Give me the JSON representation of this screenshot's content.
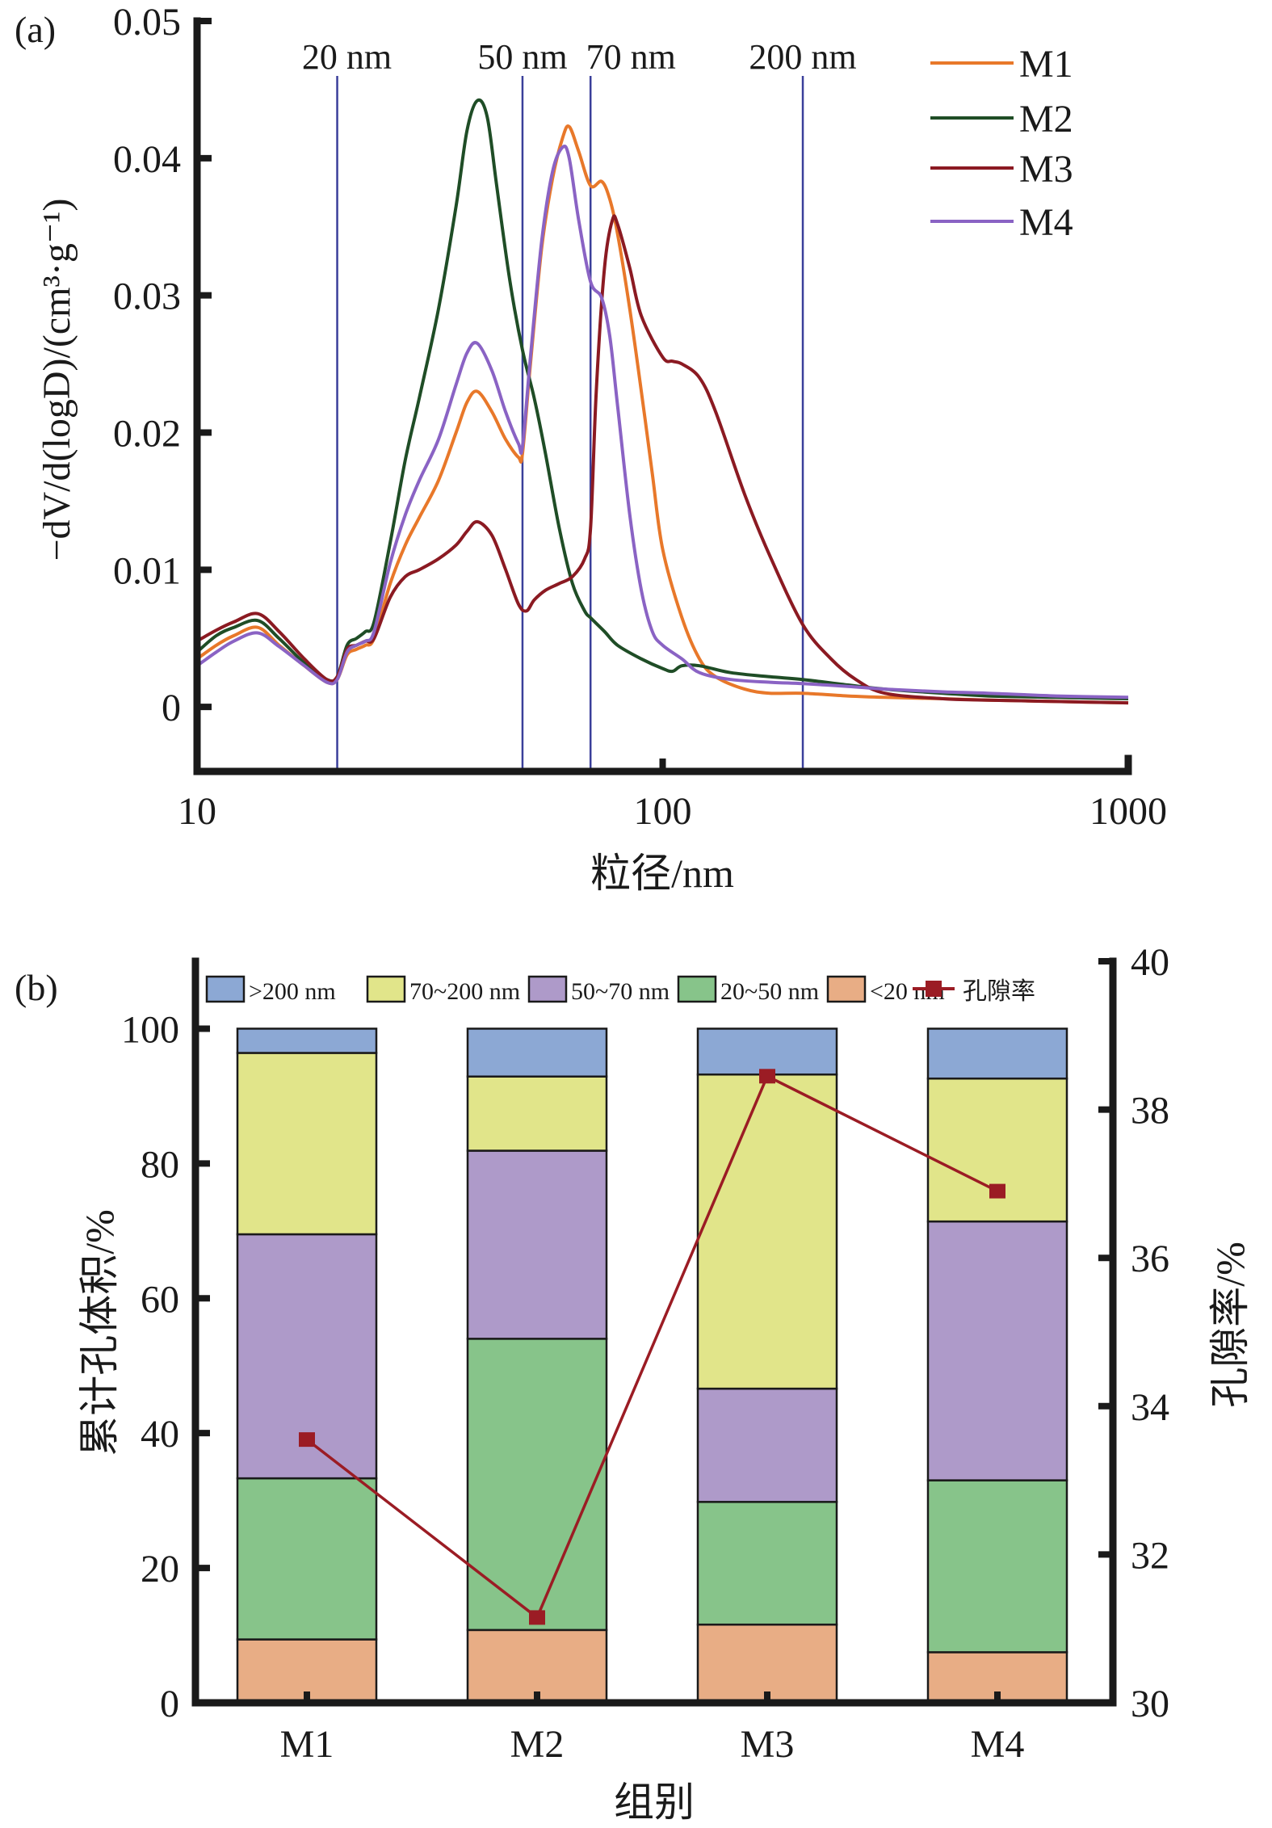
{
  "chart_data": [
    {
      "panel_label": "(a)",
      "type": "line",
      "title": "",
      "xlabel": "粒径/nm",
      "ylabel": "−dV/d(logD)/(cm³·g⁻¹)",
      "xscale": "log",
      "xlim": [
        10,
        1000
      ],
      "ylim": [
        -0.0047,
        0.05
      ],
      "x_ticks": [
        10,
        100,
        1000
      ],
      "x_tick_labels": [
        "10",
        "100",
        "1000"
      ],
      "y_ticks": [
        0,
        0.01,
        0.02,
        0.03,
        0.04,
        0.05
      ],
      "y_tick_labels": [
        "0",
        "0.01",
        "0.02",
        "0.03",
        "0.04",
        "0.05"
      ],
      "grid": false,
      "legend_position": "top-right",
      "reference_lines": [
        {
          "x": 20,
          "label": "20 nm"
        },
        {
          "x": 50,
          "label": "50 nm"
        },
        {
          "x": 70,
          "label": "70 nm"
        },
        {
          "x": 200,
          "label": "200 nm"
        }
      ],
      "reference_line_color": "#3a3f9a",
      "series": [
        {
          "name": "M1",
          "color": "#e8782a",
          "x": [
            10,
            11,
            12,
            13.5,
            15,
            17,
            19,
            20,
            21,
            22,
            23,
            24,
            26,
            28,
            30,
            33,
            36,
            38,
            40,
            43,
            46,
            49,
            50,
            52,
            55,
            58,
            61,
            63,
            66,
            70,
            74,
            77,
            80,
            85,
            90,
            95,
            100,
            110,
            120,
            130,
            150,
            170,
            200,
            250,
            300,
            400,
            500,
            700,
            1000
          ],
          "y": [
            0.0035,
            0.0045,
            0.0052,
            0.0058,
            0.0045,
            0.003,
            0.0018,
            0.002,
            0.0038,
            0.0042,
            0.0045,
            0.005,
            0.009,
            0.0118,
            0.0138,
            0.0165,
            0.02,
            0.0222,
            0.023,
            0.0215,
            0.0195,
            0.0182,
            0.0185,
            0.025,
            0.0335,
            0.0385,
            0.0415,
            0.0423,
            0.0405,
            0.038,
            0.0383,
            0.037,
            0.0345,
            0.029,
            0.023,
            0.017,
            0.0115,
            0.0065,
            0.0035,
            0.0022,
            0.0013,
            0.001,
            0.001,
            0.0008,
            0.0007,
            0.0006,
            0.0005,
            0.0004,
            0.0003
          ]
        },
        {
          "name": "M2",
          "color": "#1f4d26",
          "x": [
            10,
            11,
            12,
            13.5,
            15,
            17,
            19,
            20,
            21,
            22,
            23,
            24,
            26,
            28,
            30,
            33,
            36,
            38,
            40,
            42,
            44,
            47,
            50,
            53,
            56,
            60,
            64,
            68,
            70,
            75,
            80,
            90,
            100,
            105,
            110,
            120,
            140,
            170,
            200,
            250,
            300,
            400,
            500,
            700,
            1000
          ],
          "y": [
            0.004,
            0.0052,
            0.0058,
            0.0063,
            0.005,
            0.0032,
            0.002,
            0.0022,
            0.0045,
            0.005,
            0.0055,
            0.0062,
            0.012,
            0.018,
            0.0225,
            0.029,
            0.0365,
            0.042,
            0.0442,
            0.043,
            0.038,
            0.031,
            0.026,
            0.0225,
            0.0185,
            0.013,
            0.009,
            0.007,
            0.0065,
            0.0055,
            0.0045,
            0.0035,
            0.0028,
            0.0026,
            0.003,
            0.003,
            0.0025,
            0.0022,
            0.002,
            0.0016,
            0.0013,
            0.001,
            0.0008,
            0.0007,
            0.0006
          ]
        },
        {
          "name": "M3",
          "color": "#8b1a22",
          "x": [
            10,
            11,
            12,
            13.5,
            15,
            17,
            19,
            20,
            21,
            22,
            23,
            24,
            26,
            28,
            30,
            33,
            36,
            38,
            40,
            43,
            46,
            49,
            51,
            53,
            56,
            60,
            64,
            68,
            70,
            72,
            75,
            78,
            80,
            85,
            90,
            100,
            105,
            110,
            120,
            130,
            150,
            170,
            200,
            230,
            260,
            300,
            400,
            500,
            700,
            1000
          ],
          "y": [
            0.0048,
            0.0056,
            0.0062,
            0.0068,
            0.0055,
            0.0035,
            0.002,
            0.0022,
            0.0042,
            0.0045,
            0.0048,
            0.005,
            0.008,
            0.0095,
            0.01,
            0.0108,
            0.0118,
            0.0128,
            0.0135,
            0.0125,
            0.01,
            0.0075,
            0.007,
            0.0078,
            0.0085,
            0.009,
            0.0095,
            0.0108,
            0.013,
            0.023,
            0.032,
            0.0355,
            0.0352,
            0.032,
            0.0285,
            0.0255,
            0.0252,
            0.025,
            0.024,
            0.0215,
            0.0155,
            0.011,
            0.006,
            0.0035,
            0.002,
            0.001,
            0.0006,
            0.0005,
            0.0004,
            0.0003
          ]
        },
        {
          "name": "M4",
          "color": "#8a63c4",
          "x": [
            10,
            11,
            12,
            13.5,
            15,
            17,
            19,
            20,
            21,
            22,
            23,
            24,
            26,
            28,
            30,
            33,
            36,
            38,
            40,
            43,
            46,
            49,
            50,
            52,
            55,
            58,
            61,
            63,
            66,
            70,
            74,
            77,
            80,
            85,
            90,
            95,
            100,
            110,
            120,
            140,
            170,
            200,
            250,
            300,
            400,
            500,
            700,
            1000
          ],
          "y": [
            0.003,
            0.004,
            0.0048,
            0.0054,
            0.0044,
            0.003,
            0.0018,
            0.002,
            0.004,
            0.0045,
            0.0048,
            0.0055,
            0.0105,
            0.014,
            0.0165,
            0.0195,
            0.0235,
            0.0258,
            0.0265,
            0.0245,
            0.0215,
            0.0192,
            0.019,
            0.0255,
            0.034,
            0.039,
            0.0408,
            0.04,
            0.0355,
            0.031,
            0.0298,
            0.027,
            0.022,
            0.014,
            0.0085,
            0.0055,
            0.0045,
            0.0035,
            0.0025,
            0.002,
            0.0018,
            0.0017,
            0.0015,
            0.0013,
            0.0011,
            0.001,
            0.0008,
            0.0007
          ]
        }
      ]
    },
    {
      "panel_label": "(b)",
      "type": "bar",
      "stacked": true,
      "title": "",
      "xlabel": "组别",
      "ylabel": "累计孔体积/%",
      "y2label": "孔隙率/%",
      "categories": [
        "M1",
        "M2",
        "M3",
        "M4"
      ],
      "ylim": [
        0,
        110
      ],
      "y_ticks": [
        0,
        20,
        40,
        60,
        80,
        100
      ],
      "y_tick_labels": [
        "0",
        "20",
        "40",
        "60",
        "80",
        "100"
      ],
      "y2lim": [
        30,
        40
      ],
      "y2_ticks": [
        30,
        32,
        34,
        36,
        38,
        40
      ],
      "y2_tick_labels": [
        "30",
        "32",
        "34",
        "36",
        "38",
        "40"
      ],
      "grid": false,
      "legend_position": "top",
      "series": [
        {
          "name": "<20 nm",
          "color": "#e8ad85",
          "values": [
            9.4,
            10.8,
            11.6,
            7.5
          ]
        },
        {
          "name": "20~50 nm",
          "color": "#87c48a",
          "values": [
            23.9,
            43.2,
            18.2,
            25.5
          ]
        },
        {
          "name": "50~70 nm",
          "color": "#ae9ac9",
          "values": [
            36.2,
            27.9,
            16.8,
            38.4
          ]
        },
        {
          "name": "70~200 nm",
          "color": "#e1e58a",
          "values": [
            26.9,
            11.0,
            46.6,
            21.2
          ]
        },
        {
          "name": ">200 nm",
          "color": "#8ca8d4",
          "values": [
            3.6,
            7.1,
            6.8,
            7.4
          ]
        }
      ],
      "legend_order": [
        ">200 nm",
        "70~200 nm",
        "50~70 nm",
        "20~50 nm",
        "<20 nm",
        "孔隙率"
      ],
      "line_series": {
        "name": "孔隙率",
        "axis": "right",
        "color": "#9b1c24",
        "marker": "square",
        "values": [
          33.55,
          31.15,
          38.45,
          36.9
        ]
      }
    }
  ]
}
